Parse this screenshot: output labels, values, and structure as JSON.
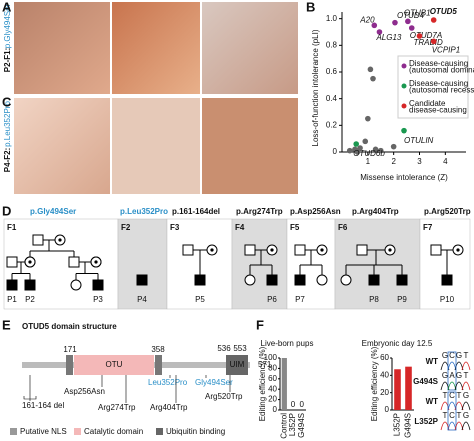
{
  "panel_labels": [
    "A",
    "B",
    "C",
    "D",
    "E",
    "F"
  ],
  "photos": {
    "row_a": {
      "patient": "P2-F1:",
      "variant": "p.Gly494Ser"
    },
    "row_c": {
      "patient": "P4-F2:",
      "variant": "p.Leu352Pro"
    }
  },
  "chart_data": [
    {
      "type": "scatter",
      "xlabel": "Missense intolerance (Z)",
      "ylabel": "Loss-of-function intolerance (pLI)",
      "xlim": [
        0,
        4.8
      ],
      "ylim": [
        0,
        1.05
      ],
      "xticks": [
        1,
        2,
        3,
        4
      ],
      "yticks": [
        0,
        0.2,
        0.4,
        0.6,
        0.8,
        {
          "value": 1,
          "label": "1.0"
        }
      ],
      "series": [
        {
          "color": "#666666",
          "x": [
            0.3,
            0.5,
            0.6,
            0.7,
            0.9,
            1.0,
            1.1,
            1.2,
            1.3,
            1.5,
            2.0
          ],
          "values": [
            0.01,
            0.02,
            0.0,
            0.03,
            0.08,
            0.25,
            0.62,
            0.55,
            0.02,
            0.01,
            0.04
          ]
        },
        {
          "name": "Disease-causing (autosomal dominant)",
          "color": "#8e2c8e",
          "x": [
            1.25,
            1.45,
            2.05,
            2.55,
            2.7
          ],
          "values": [
            0.95,
            0.9,
            0.97,
            0.98,
            0.93
          ],
          "labels": [
            "A20",
            "ALG13",
            "OTUD4",
            "OTUB1",
            "OTUD7A"
          ]
        },
        {
          "name": "Disease-causing (autosomal recessive)",
          "color": "#1a9850",
          "x": [
            0.55,
            2.4
          ],
          "values": [
            0.06,
            0.16
          ],
          "labels": [
            "OTUD6b",
            "OTULIN"
          ]
        },
        {
          "name": "Candidate disease-causing",
          "color": "#d62728",
          "x": [
            3.55,
            3.0,
            3.55
          ],
          "values": [
            0.99,
            0.87,
            0.83
          ],
          "labels": [
            "OTUD5",
            "TRABID",
            "VCPIP1"
          ]
        }
      ]
    },
    {
      "type": "bar",
      "title": "Live-born pups",
      "ylabel": "Editing efficiency (%)",
      "categories": [
        "Control",
        "L352P",
        "G494S"
      ],
      "values": [
        100,
        0,
        0
      ],
      "colors": [
        "#888888",
        "#d62728",
        "#d62728"
      ],
      "ylim": [
        0,
        100
      ],
      "yticks": [
        0,
        20,
        40,
        60,
        80,
        100
      ]
    },
    {
      "type": "bar",
      "title": "Embryonic day 12.5",
      "ylabel": "Editing efficiency (%)",
      "categories": [
        "L352P",
        "G494S"
      ],
      "values": [
        47,
        50
      ],
      "colors": [
        "#d62728",
        "#d62728"
      ],
      "ylim": [
        0,
        60
      ],
      "yticks": [
        0,
        20,
        40,
        60
      ]
    }
  ],
  "pedigrees": {
    "families": [
      {
        "id": "F1",
        "variant": "p.Gly494Ser",
        "patients": [
          "P1",
          "P2",
          "P3"
        ]
      },
      {
        "id": "F2",
        "variant": "p.Leu352Pro",
        "patients": [
          "P4"
        ]
      },
      {
        "id": "F3",
        "variant": "p.161-164del",
        "patients": [
          "P5"
        ]
      },
      {
        "id": "F4",
        "variant": "p.Arg274Trp",
        "patients": [
          "P6"
        ]
      },
      {
        "id": "F5",
        "variant": "p.Asp256Asn",
        "patients": [
          "P7"
        ]
      },
      {
        "id": "F6",
        "variant": "p.Arg404Trp",
        "patients": [
          "P8",
          "P9"
        ]
      },
      {
        "id": "F7",
        "variant": "p.Arg520Trp",
        "patients": [
          "P10"
        ]
      }
    ]
  },
  "domain_structure": {
    "title": "OTUD5 domain structure",
    "domains": [
      "OTU",
      "UIM"
    ],
    "positions": [
      171,
      358,
      536,
      553,
      571
    ],
    "mutations": [
      "161-164 del",
      "Asp256Asn",
      "Arg274Trp",
      "Leu352Pro",
      "Gly494Ser",
      "Arg404Trp",
      "Arg520Trp"
    ],
    "legend": [
      "Putative NLS",
      "Catalytic domain",
      "Ubiquitin binding"
    ]
  },
  "sanger": [
    {
      "label": "WT",
      "bases": [
        "G",
        "C",
        "G",
        "T"
      ]
    },
    {
      "label": "G494S",
      "bases": [
        "G",
        "A",
        "G",
        "T"
      ]
    },
    {
      "label": "WT",
      "bases": [
        "T",
        "C",
        "T",
        "G"
      ]
    },
    {
      "label": "L352P",
      "bases": [
        "T",
        "C",
        "T",
        "G"
      ]
    }
  ]
}
